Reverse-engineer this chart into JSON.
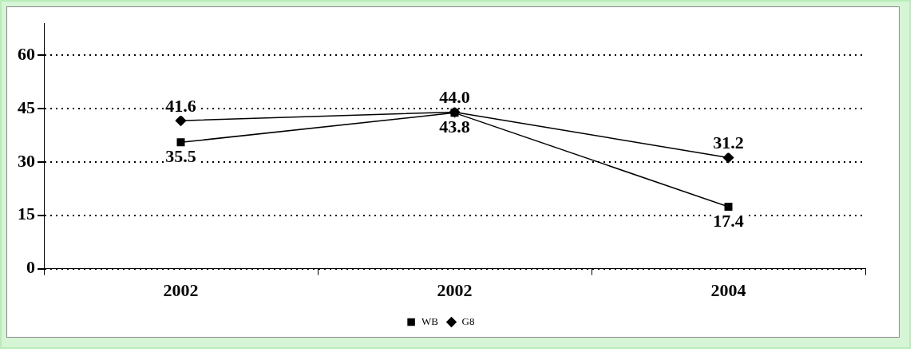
{
  "chart_data": {
    "type": "line",
    "categories": [
      "2002",
      "2002",
      "2004"
    ],
    "series": [
      {
        "name": "WB",
        "color": "#000000",
        "values": [
          35.5,
          43.8,
          17.4
        ],
        "value_labels": [
          "35.5",
          "43.8",
          "17.4"
        ],
        "marker": "square"
      },
      {
        "name": "G8",
        "color": "#000000",
        "values": [
          41.6,
          44.0,
          31.2
        ],
        "value_labels": [
          "41.6",
          "44.0",
          "31.2"
        ],
        "marker": "diamond"
      }
    ],
    "ylim": [
      0,
      69
    ],
    "yticks": [
      0,
      15,
      30,
      45,
      60
    ],
    "grid": "y",
    "line_style": "solid",
    "legend": "bottom"
  }
}
